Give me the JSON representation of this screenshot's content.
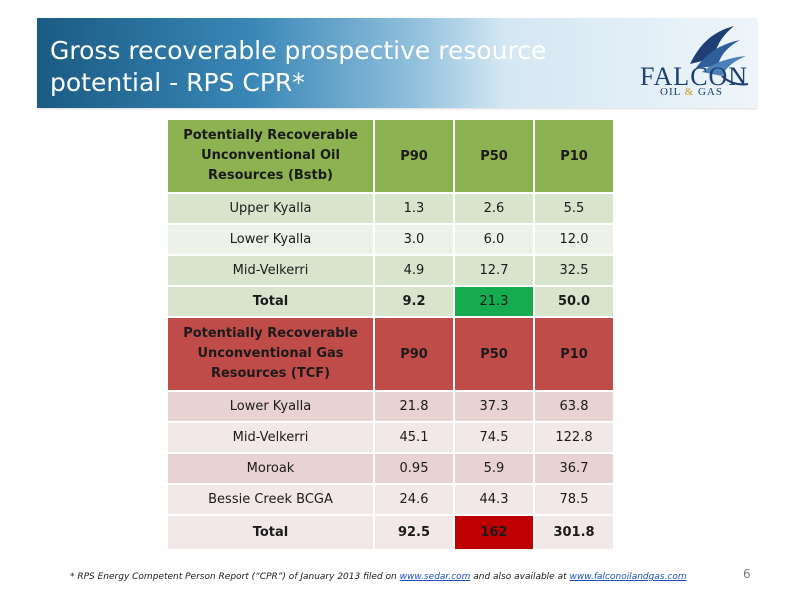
{
  "title": {
    "line1": "Gross recoverable prospective resource",
    "line2": "potential - RPS CPR*"
  },
  "logo": {
    "main": "FALCON",
    "sub_left": "OIL",
    "sub_amp": "&",
    "sub_right": "GAS",
    "icon": "falcon-wing-icon"
  },
  "oil_table": {
    "header": {
      "line1": "Potentially Recoverable",
      "line2": "Unconventional Oil",
      "line3": "Resources (Bstb)",
      "p90": "P90",
      "p50": "P50",
      "p10": "P10"
    },
    "rows": [
      {
        "name": "Upper Kyalla",
        "p90": "1.3",
        "p50": "2.6",
        "p10": "5.5"
      },
      {
        "name": "Lower Kyalla",
        "p90": "3.0",
        "p50": "6.0",
        "p10": "12.0"
      },
      {
        "name": "Mid-Velkerri",
        "p90": "4.9",
        "p50": "12.7",
        "p10": "32.5"
      }
    ],
    "total": {
      "name": "Total",
      "p90": "9.2",
      "p50": "21.3",
      "p10": "50.0"
    }
  },
  "gas_table": {
    "header": {
      "line1": "Potentially Recoverable",
      "line2": "Unconventional Gas",
      "line3": "Resources (TCF)",
      "p90": "P90",
      "p50": "P50",
      "p10": "P10"
    },
    "rows": [
      {
        "name": "Lower Kyalla",
        "p90": "21.8",
        "p50": "37.3",
        "p10": "63.8"
      },
      {
        "name": "Mid-Velkerri",
        "p90": "45.1",
        "p50": "74.5",
        "p10": "122.8"
      },
      {
        "name": "Moroak",
        "p90": "0.95",
        "p50": "5.9",
        "p10": "36.7"
      },
      {
        "name": "Bessie Creek BCGA",
        "p90": "24.6",
        "p50": "44.3",
        "p10": "78.5"
      }
    ],
    "total": {
      "name": "Total",
      "p90": "92.5",
      "p50": "162",
      "p10": "301.8"
    }
  },
  "colors": {
    "oil_header": "#8db252",
    "gas_header": "#c04c4a",
    "highlight_green": "#15ab4f",
    "highlight_red": "#c00000"
  },
  "footnote": {
    "text1": "* RPS Energy Competent Person Report (“CPR”) of January 2013 filed on ",
    "link1": "www.sedar.com",
    "text2": " and also available at ",
    "link2": "www.falconoilandgas.com"
  },
  "page_number": "6"
}
